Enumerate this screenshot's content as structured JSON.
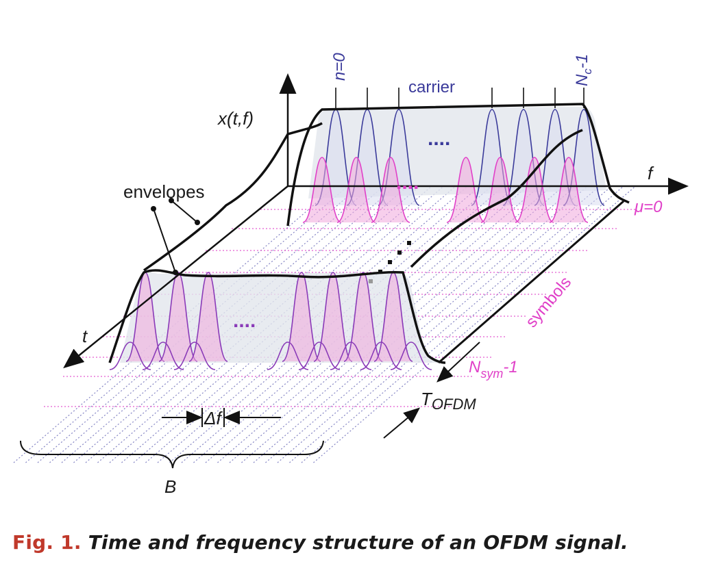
{
  "figure": {
    "labels": {
      "x_axis_label": "x(t,f)",
      "f_axis_label": "f",
      "t_axis_label": "t",
      "first_carrier": "n=0",
      "last_carrier_main": "N",
      "last_carrier_sub": "c",
      "last_carrier_suffix": "-1",
      "carrier": "carrier",
      "envelopes": "envelopes",
      "mu_zero": "μ=0",
      "symbols": "symbols",
      "nsym_main": "N",
      "nsym_sub": "sym",
      "nsym_suffix": "-1",
      "t_ofdm_main": "T",
      "t_ofdm_sub": "OFDM",
      "delta_f": "Δf",
      "bandwidth": "B",
      "ellipsis": "...."
    },
    "colors": {
      "black": "#111111",
      "blue": "#3a3a9a",
      "magenta": "#e040c8",
      "pink_fill": "#f0a8dc",
      "gray_fill": "#e2e6ec",
      "purple": "#8a3ab8"
    }
  },
  "caption": {
    "number": "Fig. 1.",
    "text": "Time and frequency structure of an OFDM signal."
  }
}
